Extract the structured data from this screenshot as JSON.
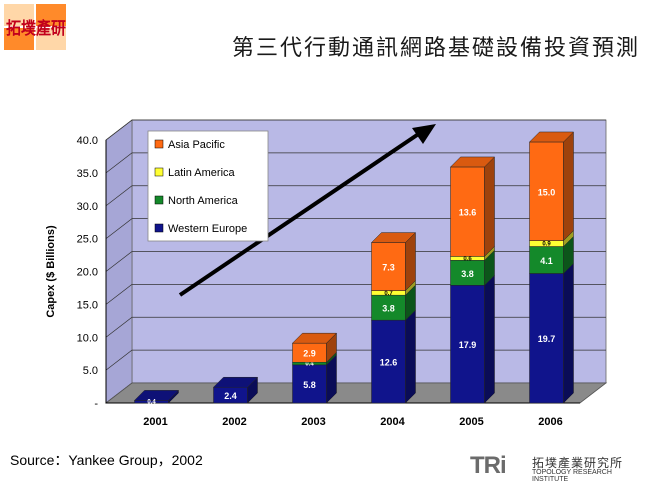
{
  "header": {
    "logo_text": "拓墣產研",
    "title": "第三代行動通訊網路基礎設備投資預測"
  },
  "footer": {
    "source": "Source：Yankee Group，2002",
    "org_mark": "TRi",
    "org_cn": "拓墣產業研究所",
    "org_en": "TOPOLOGY RESEARCH INSTITUTE"
  },
  "colors": {
    "asia_pacific": "#ff6a13",
    "latin_america": "#ffff33",
    "north_america": "#14892a",
    "western_europe": "#10148c",
    "plot_back": "#b9b9e6",
    "plot_floor": "#8a8a8a"
  },
  "chart_data": {
    "type": "bar",
    "stacked": true,
    "ylabel": "Capex ($ Billions)",
    "xlabel": "",
    "ylim": [
      0,
      40
    ],
    "yticks": [
      "-",
      "5.0",
      "10.0",
      "15.0",
      "20.0",
      "25.0",
      "30.0",
      "35.0",
      "40.0"
    ],
    "categories": [
      "2001",
      "2002",
      "2003",
      "2004",
      "2005",
      "2006"
    ],
    "series": [
      {
        "name": "Western Europe",
        "values": [
          0.4,
          2.4,
          5.8,
          12.6,
          17.9,
          19.7
        ],
        "labels": [
          "0.4",
          "2.4",
          "5.8",
          "12.6",
          "17.9",
          "19.7"
        ]
      },
      {
        "name": "North America",
        "values": [
          0,
          0,
          0.4,
          3.8,
          3.8,
          4.1
        ],
        "labels": [
          "",
          "",
          "0.4",
          "3.8",
          "3.8",
          "4.1"
        ]
      },
      {
        "name": "Latin America",
        "values": [
          0,
          0,
          0,
          0.7,
          0.6,
          0.9
        ],
        "labels": [
          "",
          "",
          "",
          "0.7",
          "0.6",
          "0.9"
        ]
      },
      {
        "name": "Asia Pacific",
        "values": [
          0,
          0,
          2.9,
          7.3,
          13.6,
          15.0
        ],
        "labels": [
          "",
          "",
          "2.9",
          "7.3",
          "13.6",
          "15.0"
        ]
      }
    ],
    "legend_position": "top-left",
    "grid": true
  }
}
